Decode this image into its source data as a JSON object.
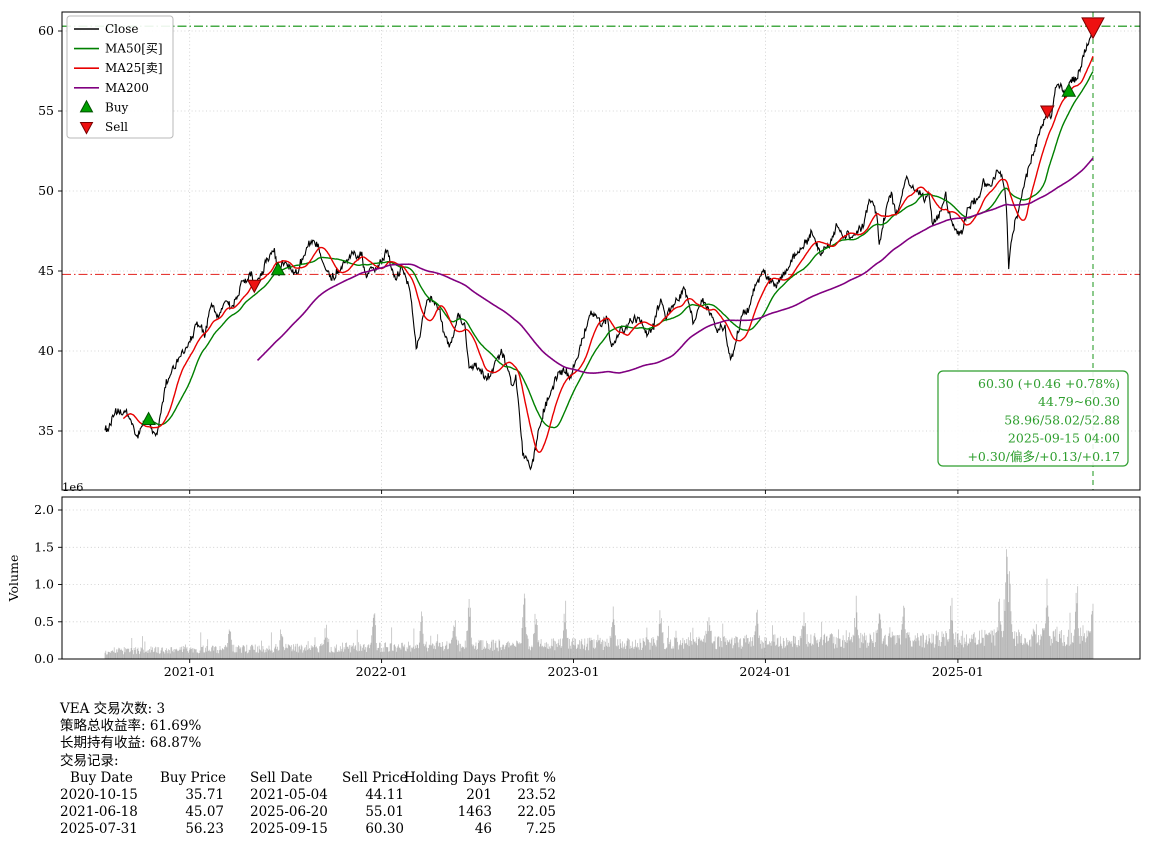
{
  "chart_data": {
    "type": "line",
    "symbol": "VEA",
    "x_axis": {
      "start": "2020-07-24",
      "end": "2025-09-15",
      "ticks": [
        {
          "label": "2021-01",
          "date": "2021-01-01"
        },
        {
          "label": "2022-01",
          "date": "2022-01-01"
        },
        {
          "label": "2023-01",
          "date": "2023-01-01"
        },
        {
          "label": "2024-01",
          "date": "2024-01-01"
        },
        {
          "label": "2025-01",
          "date": "2025-01-01"
        }
      ]
    },
    "price_axis": {
      "ticks": [
        35,
        40,
        45,
        50,
        55,
        60
      ],
      "min": 31.31,
      "max": 61.19
    },
    "volume_axis": {
      "label": "Volume",
      "offset_label": "1e6",
      "ticks": [
        0.0,
        0.5,
        1.0,
        1.5,
        2.0
      ],
      "max": 2.175
    },
    "series": [
      {
        "name": "Close",
        "color": "#000000",
        "width": 1.1
      },
      {
        "name": "MA50[买]",
        "color": "#008000",
        "window": 50,
        "width": 1.4
      },
      {
        "name": "MA25[卖]",
        "color": "#e80000",
        "window": 25,
        "width": 1.4
      },
      {
        "name": "MA200",
        "color": "#800080",
        "window": 200,
        "width": 1.6
      }
    ],
    "colors": {
      "volume": "#a9a9a9",
      "buy": "#00a000",
      "sell": "#ee1111"
    },
    "reference_lines": {
      "high": {
        "value": 60.3,
        "color": "#0a8f0a",
        "style": "dashdot"
      },
      "mid": {
        "value": 44.79,
        "color": "#e53935",
        "style": "dashdot"
      },
      "vline": {
        "date": "2025-09-15",
        "color": "#2e9e2e",
        "style": "dashed"
      }
    },
    "markers": [
      {
        "type": "buy",
        "date": "2020-10-15",
        "price": 35.71
      },
      {
        "type": "sell",
        "date": "2021-05-04",
        "price": 44.11
      },
      {
        "type": "buy",
        "date": "2021-06-18",
        "price": 45.07
      },
      {
        "type": "sell",
        "date": "2025-06-20",
        "price": 55.01
      },
      {
        "type": "buy",
        "date": "2025-07-31",
        "price": 56.23
      },
      {
        "type": "sell",
        "date": "2025-09-15",
        "price": 60.3,
        "big": true
      }
    ],
    "legend": {
      "items": [
        {
          "label": "Close",
          "type": "line",
          "color": "#000000"
        },
        {
          "label": "MA50[买]",
          "type": "line",
          "color": "#008000"
        },
        {
          "label": "MA25[卖]",
          "type": "line",
          "color": "#e80000"
        },
        {
          "label": "MA200",
          "type": "line",
          "color": "#800080"
        },
        {
          "label": "Buy",
          "type": "triangle-up",
          "color": "#00a000"
        },
        {
          "label": "Sell",
          "type": "triangle-down",
          "color": "#ee1111"
        }
      ]
    },
    "annotation": {
      "color": "#2e9e2e",
      "lines": [
        "60.30 (+0.46 +0.78%)",
        "44.79~60.30",
        "58.96/58.02/52.88",
        "2025-09-15 04:00",
        "+0.30/偏多/+0.13/+0.17"
      ]
    },
    "close_waypoints": [
      [
        "2020-07-24",
        35.1
      ],
      [
        "2020-08-11",
        35.9
      ],
      [
        "2020-09-02",
        36.0
      ],
      [
        "2020-09-24",
        34.6
      ],
      [
        "2020-10-09",
        35.6
      ],
      [
        "2020-10-15",
        35.71
      ],
      [
        "2020-10-28",
        34.5
      ],
      [
        "2020-11-04",
        35.4
      ],
      [
        "2020-11-16",
        37.9
      ],
      [
        "2020-11-30",
        38.9
      ],
      [
        "2020-12-16",
        39.9
      ],
      [
        "2021-01-07",
        41.3
      ],
      [
        "2021-01-14",
        41.8
      ],
      [
        "2021-01-29",
        40.9
      ],
      [
        "2021-02-12",
        42.9
      ],
      [
        "2021-02-26",
        41.9
      ],
      [
        "2021-03-11",
        43.0
      ],
      [
        "2021-03-24",
        42.6
      ],
      [
        "2021-04-09",
        44.2
      ],
      [
        "2021-04-29",
        44.7
      ],
      [
        "2021-05-04",
        44.11
      ],
      [
        "2021-05-12",
        44.3
      ],
      [
        "2021-05-25",
        45.2
      ],
      [
        "2021-06-11",
        46.3
      ],
      [
        "2021-06-18",
        45.07
      ],
      [
        "2021-06-28",
        45.9
      ],
      [
        "2021-07-08",
        45.4
      ],
      [
        "2021-07-26",
        44.9
      ],
      [
        "2021-08-11",
        46.0
      ],
      [
        "2021-09-02",
        46.6
      ],
      [
        "2021-09-21",
        45.1
      ],
      [
        "2021-10-04",
        44.9
      ],
      [
        "2021-10-20",
        45.9
      ],
      [
        "2021-11-08",
        46.8
      ],
      [
        "2021-11-24",
        46.3
      ],
      [
        "2021-12-01",
        44.8
      ],
      [
        "2021-12-20",
        45.7
      ],
      [
        "2022-01-05",
        46.4
      ],
      [
        "2022-01-13",
        46.6
      ],
      [
        "2022-01-27",
        44.8
      ],
      [
        "2022-02-09",
        45.7
      ],
      [
        "2022-02-23",
        44.2
      ],
      [
        "2022-03-08",
        40.4
      ],
      [
        "2022-03-29",
        43.1
      ],
      [
        "2022-04-20",
        42.5
      ],
      [
        "2022-05-09",
        39.9
      ],
      [
        "2022-05-27",
        41.7
      ],
      [
        "2022-06-07",
        41.2
      ],
      [
        "2022-06-17",
        38.6
      ],
      [
        "2022-06-27",
        39.1
      ],
      [
        "2022-07-14",
        37.9
      ],
      [
        "2022-08-16",
        40.1
      ],
      [
        "2022-09-06",
        37.7
      ],
      [
        "2022-09-13",
        38.4
      ],
      [
        "2022-09-27",
        34.2
      ],
      [
        "2022-10-12",
        33.6
      ],
      [
        "2022-10-25",
        35.2
      ],
      [
        "2022-11-10",
        36.7
      ],
      [
        "2022-11-25",
        38.3
      ],
      [
        "2022-12-13",
        38.6
      ],
      [
        "2022-12-28",
        37.9
      ],
      [
        "2023-01-13",
        40.0
      ],
      [
        "2023-02-02",
        41.9
      ],
      [
        "2023-02-24",
        40.7
      ],
      [
        "2023-03-06",
        41.5
      ],
      [
        "2023-03-15",
        39.9
      ],
      [
        "2023-04-04",
        41.5
      ],
      [
        "2023-04-28",
        42.0
      ],
      [
        "2023-05-18",
        41.3
      ],
      [
        "2023-06-02",
        42.1
      ],
      [
        "2023-06-16",
        43.3
      ],
      [
        "2023-06-26",
        42.6
      ],
      [
        "2023-07-12",
        43.1
      ],
      [
        "2023-07-31",
        44.0
      ],
      [
        "2023-08-18",
        41.9
      ],
      [
        "2023-09-01",
        42.8
      ],
      [
        "2023-09-21",
        42.2
      ],
      [
        "2023-10-03",
        41.0
      ],
      [
        "2023-10-17",
        41.4
      ],
      [
        "2023-10-27",
        39.6
      ],
      [
        "2023-11-14",
        42.0
      ],
      [
        "2023-12-01",
        42.7
      ],
      [
        "2023-12-14",
        43.9
      ],
      [
        "2023-12-28",
        44.6
      ],
      [
        "2024-01-17",
        43.9
      ],
      [
        "2024-02-01",
        44.7
      ],
      [
        "2024-02-22",
        45.7
      ],
      [
        "2024-03-07",
        46.4
      ],
      [
        "2024-03-27",
        47.0
      ],
      [
        "2024-04-16",
        45.6
      ],
      [
        "2024-05-03",
        46.7
      ],
      [
        "2024-05-15",
        48.1
      ],
      [
        "2024-05-29",
        47.6
      ],
      [
        "2024-06-14",
        47.2
      ],
      [
        "2024-07-01",
        47.9
      ],
      [
        "2024-07-16",
        49.3
      ],
      [
        "2024-07-31",
        48.8
      ],
      [
        "2024-08-05",
        46.7
      ],
      [
        "2024-08-19",
        48.7
      ],
      [
        "2024-08-27",
        49.5
      ],
      [
        "2024-09-06",
        48.2
      ],
      [
        "2024-09-26",
        51.0
      ],
      [
        "2024-10-10",
        50.0
      ],
      [
        "2024-10-31",
        49.1
      ],
      [
        "2024-11-06",
        49.7
      ],
      [
        "2024-11-15",
        47.9
      ],
      [
        "2024-11-29",
        48.9
      ],
      [
        "2024-12-09",
        49.4
      ],
      [
        "2024-12-19",
        47.6
      ],
      [
        "2025-01-10",
        47.4
      ],
      [
        "2025-01-24",
        48.8
      ],
      [
        "2025-02-05",
        49.5
      ],
      [
        "2025-02-19",
        50.6
      ],
      [
        "2025-03-04",
        50.1
      ],
      [
        "2025-03-18",
        51.4
      ],
      [
        "2025-03-27",
        51.0
      ],
      [
        "2025-04-03",
        49.2
      ],
      [
        "2025-04-08",
        45.4
      ],
      [
        "2025-04-14",
        47.2
      ],
      [
        "2025-04-24",
        48.4
      ],
      [
        "2025-05-02",
        49.7
      ],
      [
        "2025-05-13",
        51.1
      ],
      [
        "2025-05-27",
        52.3
      ],
      [
        "2025-06-05",
        53.4
      ],
      [
        "2025-06-13",
        54.2
      ],
      [
        "2025-06-20",
        55.01
      ],
      [
        "2025-06-27",
        54.7
      ],
      [
        "2025-07-03",
        55.7
      ],
      [
        "2025-07-11",
        56.3
      ],
      [
        "2025-07-18",
        55.9
      ],
      [
        "2025-07-25",
        55.4
      ],
      [
        "2025-07-31",
        56.23
      ],
      [
        "2025-08-08",
        56.6
      ],
      [
        "2025-08-15",
        57.0
      ],
      [
        "2025-08-22",
        57.9
      ],
      [
        "2025-08-29",
        58.3
      ],
      [
        "2025-09-05",
        59.2
      ],
      [
        "2025-09-11",
        59.9
      ],
      [
        "2025-09-15",
        60.3
      ]
    ],
    "volume_profile": {
      "base_start": 0.06,
      "base_end": 0.17,
      "noise": 0.16,
      "spikes": [
        [
          "2021-03-19",
          0.35
        ],
        [
          "2021-06-25",
          0.3
        ],
        [
          "2021-09-17",
          0.35
        ],
        [
          "2021-12-17",
          0.6
        ],
        [
          "2022-03-18",
          0.5
        ],
        [
          "2022-05-20",
          0.45
        ],
        [
          "2022-06-17",
          0.75
        ],
        [
          "2022-09-30",
          0.9
        ],
        [
          "2022-10-21",
          0.6
        ],
        [
          "2022-12-16",
          0.5
        ],
        [
          "2023-03-17",
          0.55
        ],
        [
          "2023-06-16",
          0.5
        ],
        [
          "2023-09-15",
          0.45
        ],
        [
          "2023-12-15",
          0.5
        ],
        [
          "2024-03-15",
          0.45
        ],
        [
          "2024-06-21",
          0.55
        ],
        [
          "2024-08-05",
          0.5
        ],
        [
          "2024-09-20",
          0.5
        ],
        [
          "2024-12-20",
          0.55
        ],
        [
          "2025-03-21",
          0.5
        ],
        [
          "2025-04-04",
          1.15
        ],
        [
          "2025-04-09",
          0.9
        ],
        [
          "2025-06-20",
          0.7
        ],
        [
          "2025-08-15",
          0.75
        ],
        [
          "2025-09-15",
          0.5
        ]
      ]
    }
  },
  "stats": {
    "symbol_line": "VEA 交易次数: 3",
    "strategy_return_line": "策略总收益率: 61.69%",
    "hold_return_line": "长期持有收益: 68.87%",
    "records_label": "交易记录:",
    "table": {
      "headers": [
        "Buy Date",
        "Buy Price",
        "Sell Date",
        "Sell Price",
        "Holding Days",
        "Profit %"
      ],
      "rows": [
        [
          "2020-10-15",
          "35.71",
          "2021-05-04",
          "44.11",
          "201",
          "23.52"
        ],
        [
          "2021-06-18",
          "45.07",
          "2025-06-20",
          "55.01",
          "1463",
          "22.05"
        ],
        [
          "2025-07-31",
          "56.23",
          "2025-09-15",
          "60.30",
          "46",
          "7.25"
        ]
      ]
    }
  }
}
